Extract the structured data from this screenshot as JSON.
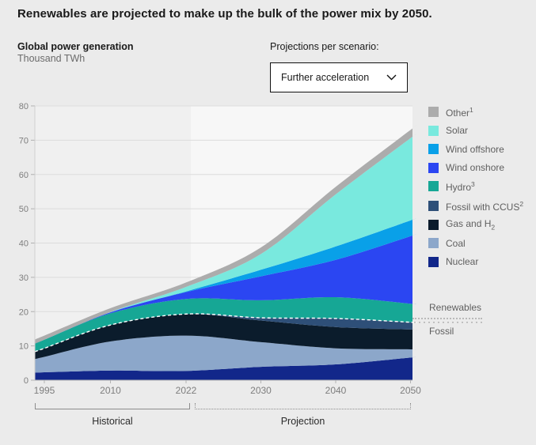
{
  "header": {
    "title": "Renewables are projected to make up the bulk of the power mix by 2050.",
    "chart_title": "Global power generation",
    "unit": "Thousand TWh"
  },
  "scenario": {
    "label": "Projections per scenario:",
    "selected": "Further acceleration",
    "chevron_icon": "chevron-down"
  },
  "chart_data": {
    "type": "area",
    "stacked": true,
    "title": "Global power generation",
    "ylabel": "Thousand TWh",
    "xlabel": "",
    "ylim": [
      0,
      80
    ],
    "y_ticks": [
      0,
      10,
      20,
      30,
      40,
      50,
      60,
      70,
      80
    ],
    "grid": true,
    "x_labels": [
      "1995",
      "2010",
      "2022",
      "2030",
      "2040",
      "2050"
    ],
    "series": [
      {
        "name": "Nuclear",
        "group": "fossil",
        "color": "#12278a",
        "values": [
          2.3,
          2.8,
          2.7,
          3.9,
          4.6,
          6.6
        ]
      },
      {
        "name": "Coal",
        "group": "fossil",
        "color": "#8ca7ca",
        "values": [
          4.5,
          8.5,
          10.3,
          7.2,
          4.7,
          2.4
        ]
      },
      {
        "name": "Gas and H2",
        "group": "fossil",
        "color": "#0b1c2c",
        "values": [
          2.5,
          4.8,
          6.3,
          6.3,
          6.2,
          5.8
        ]
      },
      {
        "name": "Fossil with CCUS",
        "group": "fossil",
        "color": "#2e4f78",
        "values": [
          0,
          0,
          0,
          0.8,
          2.5,
          2.1
        ]
      },
      {
        "name": "Hydro",
        "group": "renewable",
        "color": "#16a795",
        "values": [
          2.5,
          3.4,
          4.4,
          5.1,
          6.2,
          5.4
        ]
      },
      {
        "name": "Wind onshore",
        "group": "renewable",
        "color": "#2b46f2",
        "values": [
          0,
          0.3,
          2.0,
          7.0,
          10.9,
          19.7
        ]
      },
      {
        "name": "Wind offshore",
        "group": "renewable",
        "color": "#09a0e8",
        "values": [
          0,
          0,
          0.2,
          1.9,
          3.9,
          4.6
        ]
      },
      {
        "name": "Solar",
        "group": "renewable",
        "color": "#79e9de",
        "values": [
          0,
          0.1,
          1.3,
          4.6,
          15.2,
          24.0
        ]
      },
      {
        "name": "Other",
        "group": "other",
        "color": "#acacac",
        "values": [
          1.2,
          1.1,
          1.3,
          1.9,
          2.2,
          2.4
        ]
      }
    ],
    "totals": [
      13.0,
      21.0,
      28.5,
      38.7,
      56.4,
      73.0
    ],
    "separator": {
      "renewables_label": "Renewables",
      "fossil_label": "Fossil"
    },
    "x_axis_annotations": [
      {
        "label": "Historical",
        "range": [
          "1995",
          "2022"
        ],
        "style": "solid"
      },
      {
        "label": "Projection",
        "range": [
          "2022",
          "2050"
        ],
        "style": "dotted"
      }
    ]
  },
  "legend": {
    "groups": [
      {
        "items": [
          {
            "label": "Other",
            "sup": "1",
            "color": "#acacac"
          },
          {
            "label": "Solar",
            "color": "#79e9de"
          },
          {
            "label": "Wind offshore",
            "color": "#09a0e8"
          },
          {
            "label": "Wind onshore",
            "color": "#2b46f2"
          },
          {
            "label": "Hydro",
            "sup": "3",
            "color": "#16a795"
          }
        ]
      },
      {
        "items": [
          {
            "label": "Fossil with CCUS",
            "sup": "2",
            "color": "#2e4f78"
          },
          {
            "label": "Gas and H",
            "sub": "2",
            "color": "#0b1c2c"
          },
          {
            "label": "Coal",
            "color": "#8ca7ca"
          },
          {
            "label": "Nuclear",
            "color": "#12278a"
          }
        ]
      }
    ]
  },
  "footer": {
    "historical_label": "Historical",
    "projection_label": "Projection"
  },
  "colors": {
    "page_background": "#ebebeb",
    "plot_background_historical": "#f0f0f0",
    "plot_background_projection": "#f7f7f7",
    "gridline": "#dcdcdc",
    "axis_text": "#7e7e7e",
    "separator_dash": "#ffffff"
  }
}
